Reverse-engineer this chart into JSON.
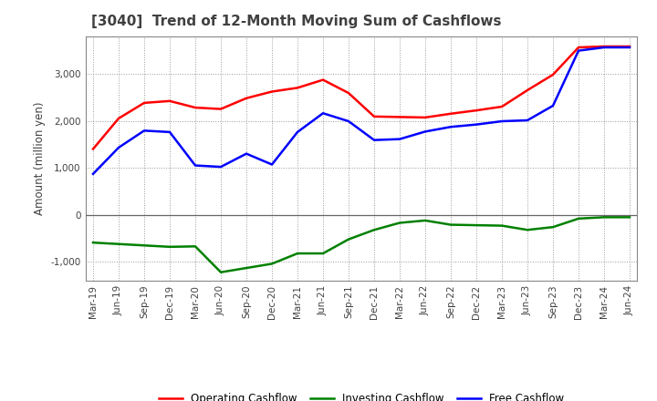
{
  "title": "[3040]  Trend of 12-Month Moving Sum of Cashflows",
  "ylabel": "Amount (million yen)",
  "ylim": [
    -1400,
    3800
  ],
  "yticks": [
    -1000,
    0,
    1000,
    2000,
    3000
  ],
  "background_color": "#ffffff",
  "grid_color": "#999999",
  "x_labels": [
    "Mar-19",
    "Jun-19",
    "Sep-19",
    "Dec-19",
    "Mar-20",
    "Jun-20",
    "Sep-20",
    "Dec-20",
    "Mar-21",
    "Jun-21",
    "Sep-21",
    "Dec-21",
    "Mar-22",
    "Jun-22",
    "Sep-22",
    "Dec-22",
    "Mar-23",
    "Jun-23",
    "Sep-23",
    "Dec-23",
    "Mar-24",
    "Jun-24"
  ],
  "operating": [
    1400,
    2050,
    2380,
    2420,
    2280,
    2250,
    2480,
    2620,
    2700,
    2870,
    2590,
    2090,
    2080,
    2070,
    2150,
    2220,
    2300,
    2650,
    2980,
    3560,
    3580,
    3580
  ],
  "investing": [
    -590,
    -620,
    -650,
    -680,
    -670,
    -1220,
    -1130,
    -1040,
    -820,
    -820,
    -520,
    -320,
    -170,
    -120,
    -210,
    -220,
    -230,
    -320,
    -260,
    -80,
    -50,
    -50
  ],
  "free": [
    870,
    1430,
    1790,
    1760,
    1050,
    1020,
    1300,
    1070,
    1760,
    2160,
    1990,
    1590,
    1610,
    1770,
    1870,
    1920,
    1990,
    2010,
    2320,
    3490,
    3560,
    3560
  ],
  "op_color": "#ff0000",
  "inv_color": "#008000",
  "free_color": "#0000ff",
  "line_width": 1.8,
  "legend_labels": [
    "Operating Cashflow",
    "Investing Cashflow",
    "Free Cashflow"
  ],
  "title_color": "#404040",
  "title_fontsize": 11
}
